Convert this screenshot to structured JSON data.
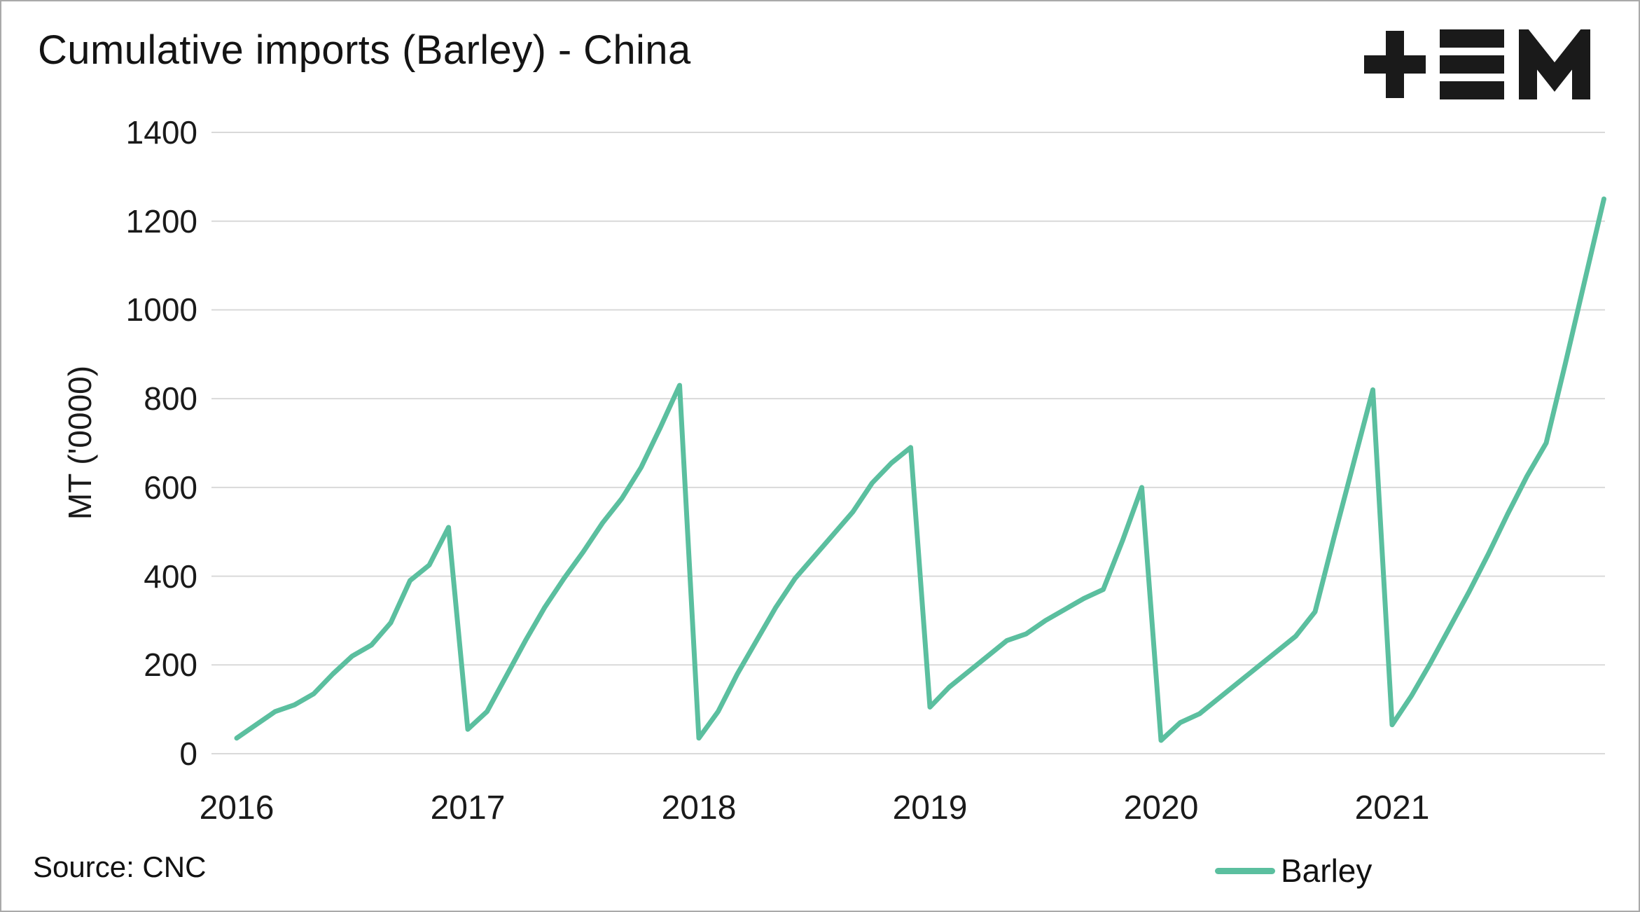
{
  "header": {
    "title": "Cumulative imports (Barley) - China",
    "logo": "tem-logo"
  },
  "theme": {
    "line_color": "#5bbf9f",
    "grid_color": "#d9d9d9",
    "text_color": "#1a1a1a",
    "logo_color": "#1a1a1a",
    "background": "#ffffff"
  },
  "footer": {
    "source": "Source: CNC",
    "legend": [
      {
        "label": "Barley",
        "color": "#5bbf9f"
      }
    ]
  },
  "chart_data": {
    "type": "line",
    "title": "Cumulative imports (Barley) - China",
    "xlabel": "",
    "ylabel": "MT ('0000)",
    "ylim": [
      0,
      1400
    ],
    "yticks": [
      0,
      200,
      400,
      600,
      800,
      1000,
      1200,
      1400
    ],
    "x_tick_labels": [
      "2016",
      "2017",
      "2018",
      "2019",
      "2020",
      "2021"
    ],
    "grid": "horizontal",
    "legend_position": "bottom-right",
    "x_unit": "month",
    "x_start": "2016-01",
    "x_end": "2021-12",
    "series": [
      {
        "name": "Barley",
        "color": "#5bbf9f",
        "values_by_year": {
          "2016": [
            35,
            65,
            95,
            110,
            135,
            180,
            220,
            245,
            295,
            390,
            425,
            510
          ],
          "2017": [
            55,
            95,
            175,
            255,
            330,
            395,
            455,
            520,
            575,
            645,
            735,
            830
          ],
          "2018": [
            35,
            95,
            180,
            255,
            330,
            395,
            445,
            495,
            545,
            610,
            655,
            690
          ],
          "2019": [
            105,
            150,
            185,
            220,
            255,
            270,
            300,
            325,
            350,
            370,
            480,
            600
          ],
          "2020": [
            30,
            70,
            90,
            125,
            160,
            195,
            230,
            265,
            320,
            490,
            655,
            820
          ],
          "2021": [
            65,
            130,
            205,
            285,
            365,
            450,
            540,
            625,
            700,
            880,
            1065,
            1250
          ]
        }
      }
    ],
    "source": "Source: CNC"
  }
}
